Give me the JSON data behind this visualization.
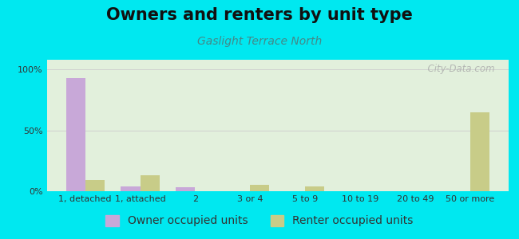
{
  "title": "Owners and renters by unit type",
  "subtitle": "Gaslight Terrace North",
  "categories": [
    "1, detached",
    "1, attached",
    "2",
    "3 or 4",
    "5 to 9",
    "10 to 19",
    "20 to 49",
    "50 or more"
  ],
  "owner_values": [
    93,
    4,
    3,
    0,
    0,
    0,
    0,
    0
  ],
  "renter_values": [
    9,
    13,
    0,
    5,
    4,
    0,
    0,
    65
  ],
  "owner_color": "#c8a8d8",
  "renter_color": "#c8cc88",
  "background_outer": "#00e8f0",
  "background_plot": "#e8f5e0",
  "ylabel_ticks": [
    "0%",
    "50%",
    "100%"
  ],
  "ytick_vals": [
    0,
    50,
    100
  ],
  "bar_width": 0.35,
  "title_fontsize": 15,
  "subtitle_fontsize": 10,
  "legend_fontsize": 10,
  "tick_fontsize": 8,
  "watermark": "  City-Data.com"
}
